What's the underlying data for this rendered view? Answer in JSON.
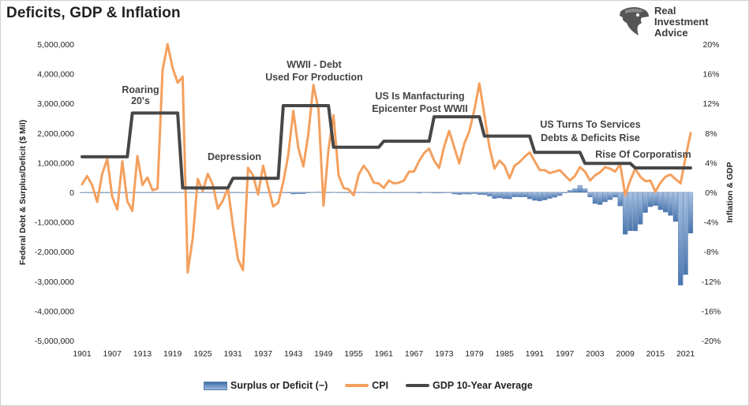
{
  "title": "Deficits, GDP & Inflation",
  "logo": {
    "lines": [
      "Real",
      "Investment",
      "Advice"
    ]
  },
  "colors": {
    "cpi": "#f4a05e",
    "gdp": "#474747",
    "deficit": "#4a76ae",
    "deficit_light": "#a9c2e3"
  },
  "chart_data": {
    "type": "bar+line",
    "title": "Deficits, GDP & Inflation",
    "ylabel_left": "Federal Debt & Surplus/Deficit ($ Mil)",
    "ylabel_right": "Inflation & GDP",
    "ylim_left": [
      -5000000,
      5000000
    ],
    "ylim_right": [
      -20,
      20
    ],
    "xlim": [
      1901,
      2022
    ],
    "y_ticks_left": [
      "5,000,000",
      "4,000,000",
      "3,000,000",
      "2,000,000",
      "1,000,000",
      "0",
      "-1,000,000",
      "-2,000,000",
      "-3,000,000",
      "-4,000,000",
      "-5,000,000"
    ],
    "y_ticks_right": [
      "20%",
      "16%",
      "12%",
      "8%",
      "4%",
      "0%",
      "-4%",
      "-8%",
      "-12%",
      "-16%",
      "-20%"
    ],
    "x_ticks": [
      "1901",
      "1907",
      "1913",
      "1919",
      "1925",
      "1931",
      "1937",
      "1943",
      "1949",
      "1955",
      "1961",
      "1967",
      "1973",
      "1979",
      "1985",
      "1991",
      "1997",
      "2003",
      "2009",
      "2015",
      "2021"
    ],
    "legend": {
      "placement": "bottom",
      "entries": [
        "Surplus or Deficit (−)",
        "CPI",
        "GDP 10-Year Average"
      ]
    },
    "annotations": [
      {
        "lines": [
          "Roaring",
          "20's"
        ]
      },
      {
        "lines": [
          "Depression"
        ]
      },
      {
        "lines": [
          "WWII - Debt",
          "Used For Production"
        ]
      },
      {
        "lines": [
          "US Is Manfacturing",
          "Epicenter Post WWII"
        ]
      },
      {
        "lines": [
          "US Turns To Services",
          "Debts & Deficits Rise"
        ]
      },
      {
        "lines": [
          "Rise Of Corporatism"
        ]
      }
    ],
    "series": [
      {
        "name": "Surplus or Deficit (−)",
        "axis": "left",
        "x": [
          1901,
          1902,
          1903,
          1904,
          1905,
          1906,
          1907,
          1908,
          1909,
          1910,
          1911,
          1912,
          1913,
          1914,
          1915,
          1916,
          1917,
          1918,
          1919,
          1920,
          1921,
          1922,
          1923,
          1924,
          1925,
          1926,
          1927,
          1928,
          1929,
          1930,
          1931,
          1932,
          1933,
          1934,
          1935,
          1936,
          1937,
          1938,
          1939,
          1940,
          1941,
          1942,
          1943,
          1944,
          1945,
          1946,
          1947,
          1948,
          1949,
          1950,
          1951,
          1952,
          1953,
          1954,
          1955,
          1956,
          1957,
          1958,
          1959,
          1960,
          1961,
          1962,
          1963,
          1964,
          1965,
          1966,
          1967,
          1968,
          1969,
          1970,
          1971,
          1972,
          1973,
          1974,
          1975,
          1976,
          1977,
          1978,
          1979,
          1980,
          1981,
          1982,
          1983,
          1984,
          1985,
          1986,
          1987,
          1988,
          1989,
          1990,
          1991,
          1992,
          1993,
          1994,
          1995,
          1996,
          1997,
          1998,
          1999,
          2000,
          2001,
          2002,
          2003,
          2004,
          2005,
          2006,
          2007,
          2008,
          2009,
          2010,
          2011,
          2012,
          2013,
          2014,
          2015,
          2016,
          2017,
          2018,
          2019,
          2020,
          2021,
          2022
        ],
        "values": [
          63,
          77,
          45,
          -43,
          -23,
          25,
          87,
          -57,
          -89,
          -18,
          11,
          3,
          -0.4,
          -0.4,
          -63,
          48,
          -853,
          -9000,
          -13000,
          291,
          509,
          736,
          713,
          963,
          717,
          865,
          1155,
          939,
          734,
          738,
          -462,
          -2735,
          -2602,
          -3630,
          -2791,
          -4425,
          -2777,
          -1177,
          -3862,
          -2920,
          -4941,
          -20503,
          -54554,
          -47557,
          -47553,
          -15936,
          4018,
          11796,
          580,
          -3119,
          6102,
          -1519,
          -6493,
          -1154,
          -2993,
          3947,
          3412,
          -2769,
          -12849,
          301,
          -3335,
          -7146,
          -4756,
          -5915,
          -1411,
          -3698,
          -8643,
          -25161,
          3242,
          -2842,
          -23033,
          -23373,
          -14908,
          -6135,
          -53242,
          -73732,
          -53659,
          -59185,
          -40726,
          -73830,
          -78968,
          -127977,
          -207802,
          -185367,
          -212308,
          -221227,
          -149730,
          -155178,
          -152639,
          -221036,
          -269238,
          -290321,
          -255051,
          -203186,
          -163952,
          -107431,
          -21884,
          69270,
          125610,
          236241,
          128236,
          -157758,
          -377585,
          -412727,
          -318346,
          -248181,
          -160701,
          -458553,
          -1412688,
          -1294373,
          -1299599,
          -1076573,
          -679775,
          -484600,
          -441960,
          -584651,
          -665446,
          -779137,
          -983589,
          -3131917,
          -2775310,
          -1375905
        ]
      },
      {
        "name": "CPI",
        "axis": "right",
        "x": [
          1901,
          1902,
          1903,
          1904,
          1905,
          1906,
          1907,
          1908,
          1909,
          1910,
          1911,
          1912,
          1913,
          1914,
          1915,
          1916,
          1917,
          1918,
          1919,
          1920,
          1921,
          1922,
          1923,
          1924,
          1925,
          1926,
          1927,
          1928,
          1929,
          1930,
          1931,
          1932,
          1933,
          1934,
          1935,
          1936,
          1937,
          1938,
          1939,
          1940,
          1941,
          1942,
          1943,
          1944,
          1945,
          1946,
          1947,
          1948,
          1949,
          1950,
          1951,
          1952,
          1953,
          1954,
          1955,
          1956,
          1957,
          1958,
          1959,
          1960,
          1961,
          1962,
          1963,
          1964,
          1965,
          1966,
          1967,
          1968,
          1969,
          1970,
          1971,
          1972,
          1973,
          1974,
          1975,
          1976,
          1977,
          1978,
          1979,
          1980,
          1981,
          1982,
          1983,
          1984,
          1985,
          1986,
          1987,
          1988,
          1989,
          1990,
          1991,
          1992,
          1993,
          1994,
          1995,
          1996,
          1997,
          1998,
          1999,
          2000,
          2001,
          2002,
          2003,
          2004,
          2005,
          2006,
          2007,
          2008,
          2009,
          2010,
          2011,
          2012,
          2013,
          2014,
          2015,
          2016,
          2017,
          2018,
          2019,
          2020,
          2021,
          2022
        ],
        "values": [
          1.1,
          2.2,
          1.0,
          -1.3,
          2.5,
          4.5,
          -0.6,
          -2.3,
          4.2,
          -1.2,
          -2.5,
          4.9,
          1.0,
          2.0,
          0.3,
          0.5,
          16.5,
          20.0,
          16.8,
          14.8,
          15.6,
          -10.8,
          -6.2,
          1.8,
          0.2,
          2.5,
          1.0,
          -2.2,
          -1.1,
          0.6,
          -4.6,
          -9.0,
          -10.5,
          3.3,
          2.3,
          -0.3,
          3.6,
          0.7,
          -1.9,
          -1.4,
          1.4,
          5.0,
          11.0,
          6.0,
          3.5,
          7.9,
          14.5,
          11.2,
          -1.8,
          5.8,
          10.4,
          2.3,
          0.6,
          0.4,
          -0.4,
          2.4,
          3.6,
          2.7,
          1.3,
          1.2,
          0.6,
          1.6,
          1.2,
          1.3,
          1.6,
          2.8,
          2.8,
          4.2,
          5.3,
          5.9,
          4.3,
          3.3,
          6.2,
          8.3,
          6.1,
          3.9,
          6.6,
          8.2,
          11.1,
          14.7,
          10.4,
          6.1,
          3.2,
          4.3,
          3.6,
          1.9,
          3.6,
          4.1,
          4.8,
          5.4,
          4.2,
          3.0,
          3.0,
          2.6,
          2.8,
          3.0,
          2.3,
          1.6,
          2.2,
          3.4,
          2.8,
          1.6,
          2.3,
          2.7,
          3.4,
          3.2,
          2.8,
          3.8,
          -0.4,
          1.6,
          3.2,
          2.1,
          1.5,
          1.6,
          0.1,
          1.3,
          2.1,
          2.4,
          1.8,
          1.2,
          4.7,
          8.0
        ]
      },
      {
        "name": "GDP 10-Year Average",
        "axis": "right",
        "x": [
          1901,
          1910,
          1911,
          1920,
          1921,
          1930,
          1931,
          1940,
          1941,
          1950,
          1951,
          1960,
          1961,
          1970,
          1971,
          1980,
          1981,
          1990,
          1991,
          2000,
          2001,
          2010,
          2011,
          2022
        ],
        "values": [
          4.8,
          4.8,
          10.7,
          10.7,
          0.6,
          0.6,
          1.9,
          1.9,
          11.7,
          11.7,
          6.1,
          6.1,
          6.9,
          6.9,
          10.2,
          10.2,
          7.6,
          7.6,
          5.4,
          5.4,
          3.9,
          3.9,
          3.3,
          3.3
        ]
      }
    ]
  }
}
